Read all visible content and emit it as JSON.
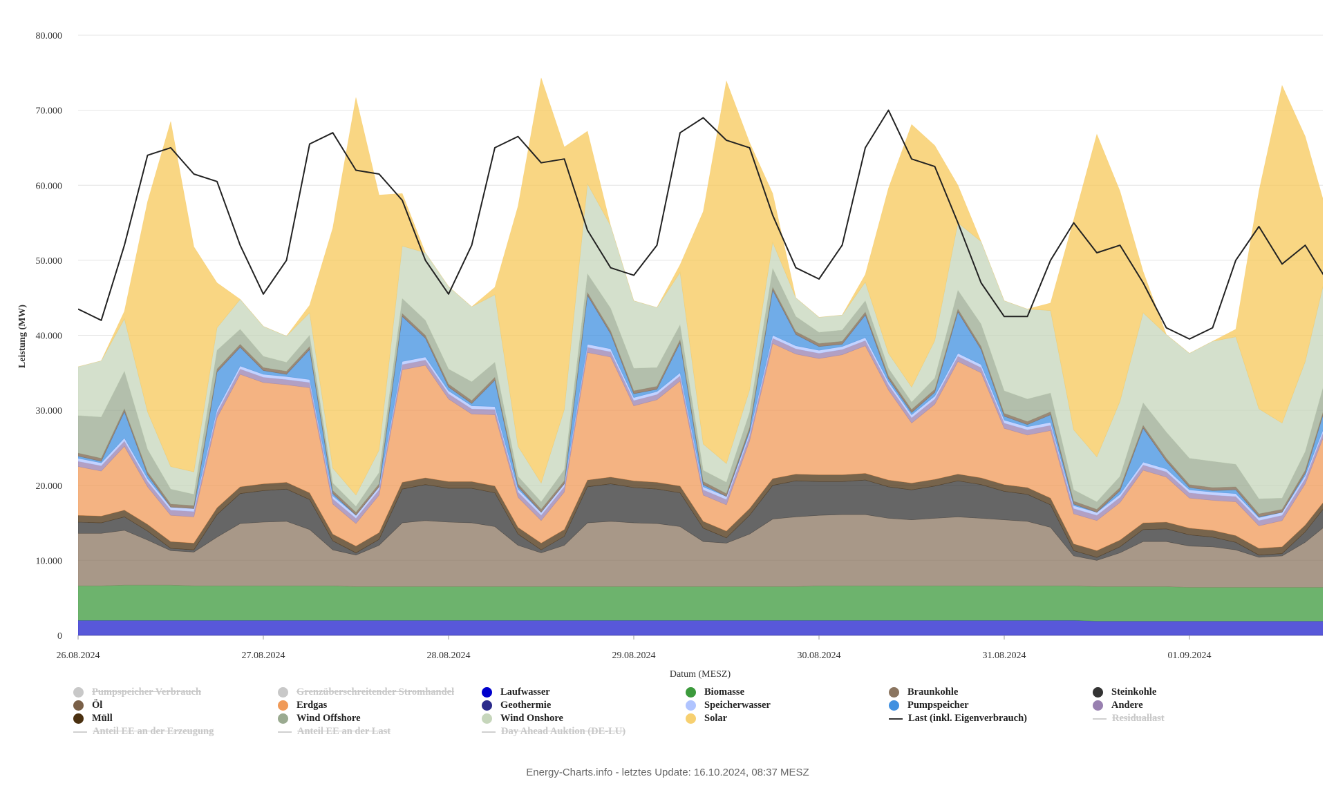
{
  "chart_data": {
    "type": "area",
    "stacked": true,
    "ylabel": "Leistung (MW)",
    "xlabel": "Datum (MESZ)",
    "ylim": [
      0,
      80000
    ],
    "yticks": [
      0,
      10000,
      20000,
      30000,
      40000,
      50000,
      60000,
      70000,
      80000
    ],
    "ytick_labels": [
      "0",
      "10.000",
      "20.000",
      "30.000",
      "40.000",
      "50.000",
      "60.000",
      "70.000",
      "80.000"
    ],
    "xtick_labels": [
      "26.08.2024",
      "27.08.2024",
      "28.08.2024",
      "29.08.2024",
      "30.08.2024",
      "31.08.2024",
      "01.09.2024"
    ],
    "x_step_hours": 3,
    "x_span_hours": 162,
    "grid": true,
    "series": [
      {
        "name": "Laufwasser",
        "color": "#2020cc",
        "values": [
          2000,
          2000,
          2000,
          2000,
          2000,
          2000,
          2000,
          2000,
          2000,
          2000,
          2000,
          2000,
          2000,
          2000,
          2000,
          2000,
          2000,
          2000,
          2000,
          2000,
          2000,
          2000,
          2000,
          2000,
          2000,
          2000,
          2000,
          2000,
          2000,
          2000,
          2000,
          2000,
          2000,
          2000,
          2000,
          2000,
          2000,
          2000,
          2000,
          2000,
          2000,
          2000,
          2000,
          2000,
          1900,
          1900,
          1900,
          1900,
          1900,
          1900,
          1900,
          1900,
          1900,
          1900,
          1900
        ]
      },
      {
        "name": "Biomasse",
        "color": "#3c9a3c",
        "values": [
          4600,
          4600,
          4700,
          4700,
          4700,
          4600,
          4600,
          4600,
          4600,
          4600,
          4600,
          4600,
          4500,
          4500,
          4500,
          4500,
          4500,
          4500,
          4500,
          4500,
          4500,
          4500,
          4500,
          4500,
          4500,
          4500,
          4500,
          4500,
          4500,
          4500,
          4500,
          4500,
          4600,
          4600,
          4600,
          4600,
          4600,
          4600,
          4600,
          4600,
          4600,
          4600,
          4600,
          4600,
          4600,
          4600,
          4600,
          4600,
          4500,
          4500,
          4500,
          4500,
          4500,
          4500,
          4500
        ]
      },
      {
        "name": "Braunkohle",
        "color": "#8b7560",
        "values": [
          7000,
          7000,
          7300,
          6000,
          4600,
          4500,
          6500,
          8300,
          8500,
          8600,
          7500,
          4800,
          4200,
          5500,
          8500,
          8800,
          8600,
          8500,
          8000,
          5500,
          4500,
          5500,
          8500,
          8700,
          8500,
          8400,
          8000,
          6000,
          5800,
          7000,
          9000,
          9300,
          9400,
          9500,
          9500,
          9000,
          8800,
          9000,
          9200,
          9000,
          8800,
          8600,
          7800,
          4000,
          3500,
          4500,
          6000,
          6000,
          5500,
          5400,
          5000,
          4000,
          4200,
          6000,
          8500
        ]
      },
      {
        "name": "Steinkohle",
        "color": "#333333",
        "values": [
          1500,
          1400,
          1800,
          1200,
          300,
          300,
          3000,
          4000,
          4200,
          4300,
          4000,
          1200,
          300,
          800,
          4500,
          4800,
          4500,
          4600,
          4500,
          1500,
          400,
          1200,
          4800,
          5000,
          4700,
          4600,
          4500,
          1800,
          700,
          2500,
          4500,
          4800,
          4500,
          4400,
          4600,
          4200,
          4000,
          4300,
          4800,
          4500,
          3800,
          3600,
          3000,
          700,
          400,
          800,
          1600,
          1700,
          1500,
          1300,
          1000,
          300,
          300,
          1400,
          2800
        ]
      },
      {
        "name": "Müll",
        "color": "#4a3010",
        "values": [
          900,
          900,
          900,
          900,
          900,
          900,
          900,
          900,
          900,
          900,
          900,
          900,
          900,
          900,
          900,
          900,
          900,
          900,
          900,
          900,
          900,
          900,
          900,
          900,
          900,
          900,
          900,
          900,
          900,
          900,
          900,
          900,
          900,
          900,
          900,
          900,
          900,
          900,
          900,
          900,
          900,
          900,
          900,
          900,
          900,
          900,
          900,
          900,
          900,
          900,
          900,
          900,
          900,
          900,
          900
        ]
      },
      {
        "name": "Erdgas",
        "color": "#f09a58",
        "values": [
          6500,
          6000,
          8500,
          5000,
          3500,
          3500,
          12000,
          15000,
          13500,
          13000,
          14000,
          4000,
          3000,
          5000,
          15000,
          15000,
          11000,
          9000,
          9500,
          4000,
          3000,
          5000,
          17000,
          16000,
          10000,
          11000,
          14000,
          3500,
          3500,
          9000,
          18000,
          16000,
          15500,
          16000,
          17000,
          12000,
          8000,
          10000,
          15000,
          14000,
          7500,
          7000,
          9000,
          4000,
          4000,
          5000,
          7000,
          6000,
          4000,
          4000,
          4500,
          3000,
          3500,
          5500,
          9500
        ]
      },
      {
        "name": "Andere",
        "color": "#9880b0",
        "values": [
          700,
          700,
          700,
          700,
          700,
          700,
          700,
          700,
          700,
          700,
          700,
          700,
          700,
          700,
          700,
          700,
          700,
          700,
          700,
          700,
          700,
          700,
          700,
          700,
          700,
          700,
          700,
          700,
          700,
          700,
          700,
          700,
          700,
          700,
          700,
          700,
          700,
          700,
          700,
          700,
          700,
          700,
          700,
          700,
          700,
          700,
          700,
          700,
          700,
          700,
          700,
          700,
          700,
          700,
          700
        ]
      },
      {
        "name": "Speicherwasser",
        "color": "#b0c4ff",
        "values": [
          400,
          400,
          400,
          400,
          400,
          400,
          400,
          400,
          400,
          400,
          400,
          400,
          400,
          400,
          400,
          400,
          400,
          400,
          400,
          400,
          400,
          400,
          400,
          400,
          400,
          400,
          400,
          400,
          400,
          400,
          400,
          400,
          400,
          400,
          400,
          400,
          400,
          400,
          400,
          400,
          400,
          400,
          400,
          400,
          400,
          400,
          400,
          400,
          400,
          400,
          400,
          400,
          400,
          400,
          400
        ]
      },
      {
        "name": "Pumpspeicher",
        "color": "#4090e0",
        "values": [
          300,
          200,
          3500,
          500,
          0,
          0,
          5000,
          2500,
          500,
          300,
          4000,
          300,
          0,
          0,
          6000,
          2500,
          500,
          300,
          3500,
          300,
          0,
          0,
          6500,
          2000,
          500,
          300,
          4000,
          300,
          0,
          300,
          6000,
          1500,
          500,
          300,
          3000,
          400,
          300,
          500,
          5500,
          2000,
          500,
          300,
          1000,
          200,
          0,
          500,
          4500,
          1000,
          300,
          200,
          500,
          100,
          0,
          300,
          2500
        ]
      },
      {
        "name": "Öl",
        "color": "#7a6048",
        "values": [
          400,
          400,
          400,
          400,
          400,
          400,
          400,
          400,
          400,
          400,
          400,
          400,
          400,
          400,
          400,
          400,
          400,
          400,
          400,
          400,
          400,
          400,
          400,
          400,
          400,
          400,
          400,
          400,
          400,
          400,
          400,
          400,
          400,
          400,
          400,
          400,
          400,
          400,
          400,
          400,
          400,
          400,
          400,
          400,
          400,
          400,
          400,
          400,
          400,
          400,
          400,
          400,
          400,
          400,
          400
        ]
      },
      {
        "name": "Wind Offshore",
        "color": "#9aaa90",
        "values": [
          5000,
          5500,
          5000,
          3000,
          2000,
          1500,
          2500,
          2000,
          1500,
          1200,
          1500,
          1000,
          800,
          1500,
          2000,
          2000,
          2000,
          2500,
          2000,
          1000,
          1000,
          1500,
          2500,
          3000,
          3000,
          2500,
          2000,
          1500,
          1500,
          2000,
          2500,
          2000,
          1500,
          1500,
          1500,
          1000,
          1000,
          1500,
          2500,
          3000,
          3000,
          3000,
          2500,
          1500,
          1000,
          1500,
          3000,
          3500,
          3500,
          3500,
          3000,
          2000,
          1500,
          2500,
          3500
        ]
      },
      {
        "name": "Wind Onshore",
        "color": "#c6d6bb",
        "values": [
          6500,
          7500,
          7000,
          5000,
          3000,
          3000,
          3000,
          4000,
          4000,
          3500,
          3000,
          2000,
          1500,
          3000,
          7000,
          9000,
          11000,
          10000,
          9000,
          4000,
          2500,
          8000,
          12000,
          11000,
          9000,
          8000,
          7000,
          3500,
          2500,
          3000,
          3500,
          2500,
          2000,
          2000,
          2500,
          2000,
          2000,
          5000,
          9000,
          11000,
          12000,
          12000,
          11000,
          8000,
          6000,
          10000,
          12000,
          13000,
          14000,
          16000,
          17000,
          12000,
          10000,
          12000,
          14000
        ]
      },
      {
        "name": "Solar",
        "color": "#f7c85a",
        "values": [
          0,
          0,
          1000,
          28000,
          46000,
          30000,
          6000,
          0,
          0,
          0,
          1000,
          32000,
          53000,
          34000,
          7000,
          0,
          0,
          0,
          1000,
          32000,
          54000,
          35000,
          7000,
          0,
          0,
          0,
          1000,
          31000,
          51000,
          33000,
          6500,
          0,
          0,
          0,
          1000,
          22000,
          35000,
          26000,
          5000,
          0,
          0,
          0,
          1000,
          28000,
          43000,
          28000,
          5500,
          0,
          0,
          0,
          1000,
          29000,
          45000,
          30000,
          6000
        ]
      }
    ],
    "lines": [
      {
        "name": "Last (inkl. Eigenverbrauch)",
        "color": "#222222",
        "values": [
          43500,
          42000,
          52000,
          64000,
          65000,
          61500,
          60500,
          52000,
          45500,
          50000,
          65500,
          67000,
          62000,
          61500,
          58000,
          50000,
          45500,
          52000,
          65000,
          66500,
          63000,
          63500,
          54000,
          49000,
          48000,
          52000,
          67000,
          69000,
          66000,
          65000,
          56000,
          49000,
          47500,
          52000,
          65000,
          70000,
          63500,
          62500,
          55000,
          47000,
          42500,
          42500,
          50000,
          55000,
          51000,
          52000,
          47000,
          41000,
          39500,
          41000,
          50000,
          54500,
          49500,
          52000,
          47000
        ]
      }
    ]
  },
  "legend": [
    {
      "label": "Pumpspeicher Verbrauch",
      "color": "#c8c8c8",
      "kind": "dot",
      "off": true
    },
    {
      "label": "Grenzüberschreitender Stromhandel",
      "color": "#c8c8c8",
      "kind": "dot",
      "off": true
    },
    {
      "label": "Laufwasser",
      "color": "#0000cc",
      "kind": "dot",
      "off": false
    },
    {
      "label": "Biomasse",
      "color": "#3c9a3c",
      "kind": "dot",
      "off": false
    },
    {
      "label": "Braunkohle",
      "color": "#8b7560",
      "kind": "dot",
      "off": false
    },
    {
      "label": "Steinkohle",
      "color": "#333333",
      "kind": "dot",
      "off": false
    },
    {
      "label": "Öl",
      "color": "#7a6048",
      "kind": "dot",
      "off": false
    },
    {
      "label": "Erdgas",
      "color": "#f09a58",
      "kind": "dot",
      "off": false
    },
    {
      "label": "Geothermie",
      "color": "#2a2a8a",
      "kind": "dot",
      "off": false
    },
    {
      "label": "Speicherwasser",
      "color": "#b0c4ff",
      "kind": "dot",
      "off": false
    },
    {
      "label": "Pumpspeicher",
      "color": "#4090e0",
      "kind": "dot",
      "off": false
    },
    {
      "label": "Andere",
      "color": "#9880b0",
      "kind": "dot",
      "off": false
    },
    {
      "label": "Müll",
      "color": "#4a3010",
      "kind": "dot",
      "off": false
    },
    {
      "label": "Wind Offshore",
      "color": "#9aaa90",
      "kind": "dot",
      "off": false
    },
    {
      "label": "Wind Onshore",
      "color": "#c6d6bb",
      "kind": "dot",
      "off": false
    },
    {
      "label": "Solar",
      "color": "#f7d070",
      "kind": "dot",
      "off": false
    },
    {
      "label": "Last (inkl. Eigenverbrauch)",
      "color": "#333333",
      "kind": "line",
      "off": false
    },
    {
      "label": "Residuallast",
      "color": "#d0d0d0",
      "kind": "line",
      "off": true
    },
    {
      "label": "Anteil EE an der Erzeugung",
      "color": "#d0d0d0",
      "kind": "line",
      "off": true
    },
    {
      "label": "Anteil EE an der Last",
      "color": "#d0d0d0",
      "kind": "line",
      "off": true
    },
    {
      "label": "Day Ahead Auktion (DE-LU)",
      "color": "#d0d0d0",
      "kind": "line",
      "off": true
    }
  ],
  "footer": "Energy-Charts.info - letztes Update: 16.10.2024, 08:37 MESZ"
}
